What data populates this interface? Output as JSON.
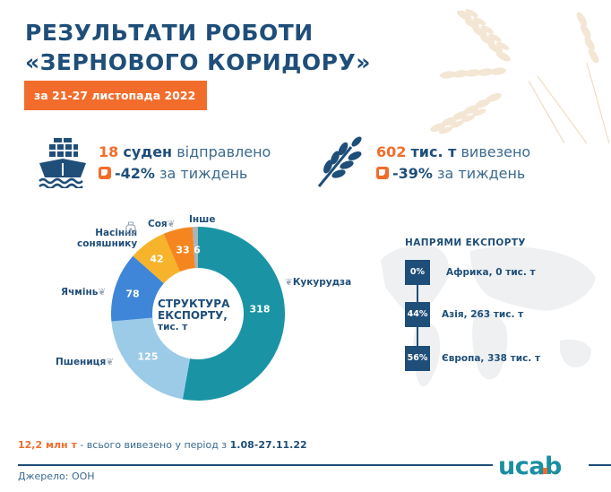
{
  "header": {
    "title_line1": "РЕЗУЛЬТАТИ РОБОТИ",
    "title_line2": "«ЗЕРНОВОГО КОРИДОРУ»",
    "date_badge": "за 21-27 листопада 2022 р."
  },
  "stats": {
    "ships": {
      "icon": "ship-icon",
      "number": "18",
      "unit": "суден",
      "text": "відправлено",
      "change": "-42%",
      "change_text": "за тиждень"
    },
    "tonnage": {
      "icon": "wheat-icon",
      "number": "602",
      "unit": "тис. т",
      "text": "вивезено",
      "change": "-39%",
      "change_text": "за тиждень"
    }
  },
  "chart_data": {
    "type": "pie",
    "subtype": "donut",
    "title": "СТРУКТУРА ЕКСПОРТУ, тис. т",
    "center_label_line1": "СТРУКТУРА",
    "center_label_line2": "ЕКСПОРТУ,",
    "center_label_line3": "тис. т",
    "start_angle": "12 o'clock, clockwise",
    "categories": [
      "Кукурудза",
      "Пшениця",
      "Ячмінь",
      "Насіння соняшнику",
      "Соя",
      "Інше"
    ],
    "values": [
      318,
      125,
      78,
      42,
      33,
      6
    ],
    "colors": [
      "#1a94a4",
      "#9ccbe8",
      "#3f86d8",
      "#f7b32b",
      "#f5861f",
      "#a9b4bb"
    ],
    "total": 602
  },
  "chart_labels": {
    "corn": "Кукурудза",
    "wheat": "Пшениця",
    "barley": "Ячмінь",
    "sunflower_line1": "Насіння",
    "sunflower_line2": "соняшнику",
    "soy": "Соя",
    "other": "Інше",
    "v_corn": "318",
    "v_wheat": "125",
    "v_barley": "78",
    "v_sunflower": "42",
    "v_soy": "33",
    "v_other": "6"
  },
  "directions": {
    "title": "НАПРЯМИ ЕКСПОРТУ",
    "items": [
      {
        "pct": "0%",
        "label": "Африка, 0 тис. т"
      },
      {
        "pct": "44%",
        "label": "Азія, 263 тис. т"
      },
      {
        "pct": "56%",
        "label": "Європа, 338 тис. т"
      }
    ]
  },
  "footer": {
    "total_number": "12,2 млн т",
    "total_text": " - всього вивезено у період з ",
    "total_period": "1.08-27.11.22",
    "source": "Джерело: ООН",
    "logo": "ucab"
  },
  "colors": {
    "primary": "#1f4e79",
    "accent": "#f26d2b",
    "logo": "#1a8fa0"
  }
}
